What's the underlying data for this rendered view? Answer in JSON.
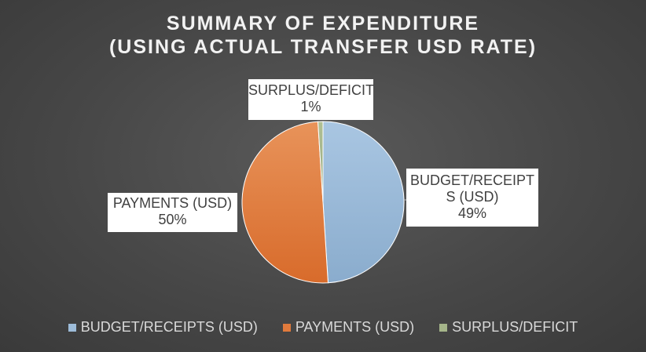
{
  "chart_data": {
    "type": "pie",
    "title": "SUMMARY OF EXPENDITURE",
    "subtitle": "(USING ACTUAL TRANSFER USD RATE)",
    "categories": [
      "BUDGET/RECEIPTS (USD)",
      "PAYMENTS (USD)",
      "SURPLUS/DEFICIT"
    ],
    "values": [
      49,
      50,
      1
    ],
    "colors": [
      "#9dbcd9",
      "#e07a3c",
      "#a5b58a"
    ],
    "data_labels": [
      {
        "name_line1": "BUDGET/RECEIPT",
        "name_line2": "S (USD)",
        "percent": "49%"
      },
      {
        "name": "PAYMENTS (USD)",
        "percent": "50%"
      },
      {
        "name": "SURPLUS/DEFICIT",
        "percent": "1%"
      }
    ],
    "legend": {
      "placement": "bottom",
      "entries": [
        "BUDGET/RECEIPTS (USD)",
        "PAYMENTS (USD)",
        "SURPLUS/DEFICIT"
      ]
    }
  }
}
